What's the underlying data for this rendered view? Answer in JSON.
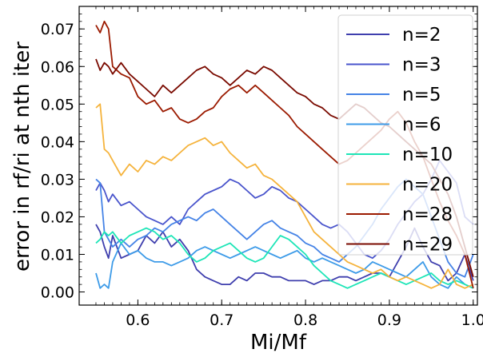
{
  "chart_data": {
    "type": "line",
    "title": "",
    "xlabel": "Mi/Mf",
    "ylabel": "error in rf/ri at nth iter",
    "xlim": [
      0.53,
      1.005
    ],
    "ylim": [
      -0.0035,
      0.076
    ],
    "xticks": [
      0.6,
      0.7,
      0.8,
      0.9,
      1.0
    ],
    "xtick_labels": [
      "0.6",
      "0.7",
      "0.8",
      "0.9",
      "1.0"
    ],
    "yticks": [
      0.0,
      0.01,
      0.02,
      0.03,
      0.04,
      0.05,
      0.06,
      0.07
    ],
    "ytick_labels": [
      "0.00",
      "0.01",
      "0.02",
      "0.03",
      "0.04",
      "0.05",
      "0.06",
      "0.07"
    ],
    "grid": false,
    "legend": "top-right",
    "series": [
      {
        "name": "n=2",
        "color": "#3f3fae",
        "x": [
          0.55,
          0.555,
          0.56,
          0.565,
          0.57,
          0.58,
          0.59,
          0.6,
          0.61,
          0.62,
          0.63,
          0.64,
          0.65,
          0.66,
          0.67,
          0.68,
          0.69,
          0.7,
          0.71,
          0.72,
          0.73,
          0.74,
          0.75,
          0.76,
          0.77,
          0.78,
          0.79,
          0.8,
          0.81,
          0.82,
          0.83,
          0.84,
          0.85,
          0.86,
          0.87,
          0.88,
          0.89,
          0.9,
          0.91,
          0.92,
          0.93,
          0.94,
          0.95,
          0.96,
          0.97,
          0.98,
          0.99,
          1.0
        ],
        "y": [
          0.018,
          0.016,
          0.012,
          0.009,
          0.015,
          0.009,
          0.01,
          0.011,
          0.015,
          0.013,
          0.016,
          0.012,
          0.014,
          0.011,
          0.006,
          0.004,
          0.003,
          0.002,
          0.002,
          0.004,
          0.003,
          0.005,
          0.005,
          0.004,
          0.004,
          0.003,
          0.003,
          0.003,
          0.002,
          0.003,
          0.003,
          0.004,
          0.004,
          0.003,
          0.004,
          0.005,
          0.005,
          0.004,
          0.008,
          0.012,
          0.017,
          0.012,
          0.008,
          0.007,
          0.003,
          0.005,
          0.01,
          0.003
        ]
      },
      {
        "name": "n=3",
        "color": "#4a55cc",
        "x": [
          0.55,
          0.555,
          0.56,
          0.565,
          0.57,
          0.58,
          0.59,
          0.6,
          0.61,
          0.62,
          0.63,
          0.64,
          0.65,
          0.66,
          0.67,
          0.68,
          0.69,
          0.7,
          0.71,
          0.72,
          0.73,
          0.74,
          0.75,
          0.76,
          0.77,
          0.78,
          0.79,
          0.8,
          0.81,
          0.82,
          0.83,
          0.84,
          0.85,
          0.86,
          0.87,
          0.88,
          0.89,
          0.9,
          0.91,
          0.92,
          0.93,
          0.94,
          0.95,
          0.96,
          0.97,
          0.98,
          0.99,
          1.0
        ],
        "y": [
          0.027,
          0.029,
          0.027,
          0.024,
          0.026,
          0.023,
          0.024,
          0.022,
          0.02,
          0.019,
          0.018,
          0.02,
          0.018,
          0.022,
          0.024,
          0.026,
          0.027,
          0.028,
          0.03,
          0.029,
          0.027,
          0.025,
          0.026,
          0.028,
          0.027,
          0.025,
          0.024,
          0.022,
          0.02,
          0.018,
          0.017,
          0.018,
          0.016,
          0.013,
          0.01,
          0.009,
          0.011,
          0.014,
          0.018,
          0.021,
          0.024,
          0.026,
          0.03,
          0.035,
          0.032,
          0.029,
          0.02,
          0.018
        ]
      },
      {
        "name": "n=5",
        "color": "#4583e6",
        "x": [
          0.55,
          0.555,
          0.56,
          0.565,
          0.57,
          0.58,
          0.59,
          0.6,
          0.61,
          0.62,
          0.63,
          0.64,
          0.65,
          0.66,
          0.67,
          0.68,
          0.69,
          0.7,
          0.71,
          0.72,
          0.73,
          0.74,
          0.75,
          0.76,
          0.77,
          0.78,
          0.79,
          0.8,
          0.81,
          0.82,
          0.83,
          0.84,
          0.85,
          0.86,
          0.87,
          0.88,
          0.89,
          0.9,
          0.91,
          0.92,
          0.93,
          0.94,
          0.95,
          0.96,
          0.97,
          0.98,
          0.99,
          1.0
        ],
        "y": [
          0.03,
          0.029,
          0.016,
          0.014,
          0.012,
          0.014,
          0.012,
          0.014,
          0.015,
          0.017,
          0.016,
          0.018,
          0.019,
          0.02,
          0.019,
          0.021,
          0.022,
          0.02,
          0.018,
          0.016,
          0.014,
          0.016,
          0.018,
          0.019,
          0.017,
          0.016,
          0.015,
          0.013,
          0.012,
          0.01,
          0.009,
          0.008,
          0.01,
          0.012,
          0.015,
          0.018,
          0.022,
          0.025,
          0.028,
          0.03,
          0.028,
          0.026,
          0.02,
          0.014,
          0.008,
          0.005,
          0.004,
          0.01
        ]
      },
      {
        "name": "n=6",
        "color": "#3d9be8",
        "x": [
          0.55,
          0.555,
          0.56,
          0.565,
          0.57,
          0.58,
          0.59,
          0.6,
          0.61,
          0.62,
          0.63,
          0.64,
          0.65,
          0.66,
          0.67,
          0.68,
          0.69,
          0.7,
          0.71,
          0.72,
          0.73,
          0.74,
          0.75,
          0.76,
          0.77,
          0.78,
          0.79,
          0.8,
          0.81,
          0.82,
          0.83,
          0.84,
          0.85,
          0.86,
          0.87,
          0.88,
          0.89,
          0.9,
          0.91,
          0.92,
          0.93,
          0.94,
          0.95,
          0.96,
          0.97,
          0.98,
          0.99,
          1.0
        ],
        "y": [
          0.005,
          0.001,
          0.002,
          0.001,
          0.008,
          0.013,
          0.01,
          0.011,
          0.009,
          0.008,
          0.008,
          0.007,
          0.008,
          0.009,
          0.011,
          0.012,
          0.011,
          0.01,
          0.009,
          0.01,
          0.011,
          0.012,
          0.011,
          0.01,
          0.009,
          0.01,
          0.011,
          0.009,
          0.008,
          0.009,
          0.008,
          0.007,
          0.006,
          0.005,
          0.006,
          0.008,
          0.007,
          0.006,
          0.005,
          0.004,
          0.006,
          0.008,
          0.004,
          0.002,
          0.001,
          0.004,
          0.002,
          0.001
        ]
      },
      {
        "name": "n=10",
        "color": "#1de5b7",
        "x": [
          0.55,
          0.555,
          0.56,
          0.565,
          0.57,
          0.58,
          0.59,
          0.6,
          0.61,
          0.62,
          0.63,
          0.64,
          0.65,
          0.66,
          0.67,
          0.68,
          0.69,
          0.7,
          0.71,
          0.72,
          0.73,
          0.74,
          0.75,
          0.76,
          0.77,
          0.78,
          0.79,
          0.8,
          0.81,
          0.82,
          0.83,
          0.84,
          0.85,
          0.86,
          0.87,
          0.88,
          0.89,
          0.9,
          0.91,
          0.92,
          0.93,
          0.94,
          0.95,
          0.96,
          0.97,
          0.98,
          0.99,
          1.0
        ],
        "y": [
          0.013,
          0.014,
          0.016,
          0.015,
          0.016,
          0.013,
          0.015,
          0.016,
          0.017,
          0.016,
          0.014,
          0.015,
          0.013,
          0.01,
          0.008,
          0.009,
          0.011,
          0.012,
          0.013,
          0.011,
          0.009,
          0.008,
          0.009,
          0.012,
          0.015,
          0.014,
          0.012,
          0.01,
          0.007,
          0.005,
          0.003,
          0.002,
          0.001,
          0.002,
          0.003,
          0.004,
          0.005,
          0.004,
          0.003,
          0.002,
          0.003,
          0.004,
          0.005,
          0.003,
          0.002,
          0.003,
          0.002,
          0.001
        ]
      },
      {
        "name": "n=20",
        "color": "#f5b33c",
        "x": [
          0.55,
          0.555,
          0.56,
          0.565,
          0.57,
          0.58,
          0.59,
          0.6,
          0.61,
          0.62,
          0.63,
          0.64,
          0.65,
          0.66,
          0.67,
          0.68,
          0.69,
          0.7,
          0.71,
          0.72,
          0.73,
          0.74,
          0.75,
          0.76,
          0.77,
          0.78,
          0.79,
          0.8,
          0.81,
          0.82,
          0.83,
          0.84,
          0.85,
          0.86,
          0.87,
          0.88,
          0.89,
          0.9,
          0.91,
          0.92,
          0.93,
          0.94,
          0.95,
          0.96,
          0.97,
          0.98,
          0.99,
          1.0
        ],
        "y": [
          0.049,
          0.05,
          0.038,
          0.037,
          0.035,
          0.031,
          0.034,
          0.032,
          0.035,
          0.034,
          0.036,
          0.035,
          0.037,
          0.039,
          0.04,
          0.041,
          0.039,
          0.04,
          0.037,
          0.035,
          0.033,
          0.034,
          0.031,
          0.03,
          0.028,
          0.026,
          0.024,
          0.02,
          0.016,
          0.014,
          0.012,
          0.01,
          0.008,
          0.007,
          0.006,
          0.005,
          0.006,
          0.004,
          0.003,
          0.004,
          0.003,
          0.002,
          0.001,
          0.002,
          0.006,
          0.002,
          0.001,
          0.002
        ]
      },
      {
        "name": "n=28",
        "color": "#9b1a00",
        "x": [
          0.55,
          0.555,
          0.56,
          0.565,
          0.57,
          0.58,
          0.59,
          0.6,
          0.61,
          0.62,
          0.63,
          0.64,
          0.65,
          0.66,
          0.67,
          0.68,
          0.69,
          0.7,
          0.71,
          0.72,
          0.73,
          0.74,
          0.75,
          0.76,
          0.77,
          0.78,
          0.79,
          0.8,
          0.81,
          0.82,
          0.83,
          0.84,
          0.85,
          0.86,
          0.87,
          0.88,
          0.89,
          0.9,
          0.91,
          0.92,
          0.93,
          0.94,
          0.95,
          0.96,
          0.97,
          0.98,
          0.99,
          1.0
        ],
        "y": [
          0.071,
          0.069,
          0.072,
          0.07,
          0.06,
          0.058,
          0.057,
          0.052,
          0.05,
          0.051,
          0.048,
          0.049,
          0.046,
          0.045,
          0.046,
          0.048,
          0.049,
          0.052,
          0.054,
          0.055,
          0.053,
          0.055,
          0.053,
          0.051,
          0.049,
          0.047,
          0.044,
          0.042,
          0.04,
          0.038,
          0.036,
          0.034,
          0.035,
          0.037,
          0.039,
          0.041,
          0.043,
          0.046,
          0.048,
          0.045,
          0.04,
          0.036,
          0.03,
          0.024,
          0.019,
          0.015,
          0.01,
          0.001
        ]
      },
      {
        "name": "n=29",
        "color": "#7a0a00",
        "x": [
          0.55,
          0.555,
          0.56,
          0.565,
          0.57,
          0.58,
          0.59,
          0.6,
          0.61,
          0.62,
          0.63,
          0.64,
          0.65,
          0.66,
          0.67,
          0.68,
          0.69,
          0.7,
          0.71,
          0.72,
          0.73,
          0.74,
          0.75,
          0.76,
          0.77,
          0.78,
          0.79,
          0.8,
          0.81,
          0.82,
          0.83,
          0.84,
          0.85,
          0.86,
          0.87,
          0.88,
          0.89,
          0.9,
          0.91,
          0.92,
          0.93,
          0.94,
          0.95,
          0.96,
          0.97,
          0.98,
          0.99,
          1.0
        ],
        "y": [
          0.062,
          0.059,
          0.061,
          0.06,
          0.058,
          0.061,
          0.058,
          0.056,
          0.054,
          0.052,
          0.055,
          0.053,
          0.055,
          0.057,
          0.059,
          0.06,
          0.058,
          0.057,
          0.055,
          0.057,
          0.059,
          0.058,
          0.06,
          0.059,
          0.057,
          0.055,
          0.053,
          0.052,
          0.05,
          0.049,
          0.047,
          0.046,
          0.048,
          0.05,
          0.049,
          0.047,
          0.045,
          0.044,
          0.042,
          0.04,
          0.038,
          0.036,
          0.034,
          0.03,
          0.026,
          0.02,
          0.012,
          0.004
        ]
      }
    ]
  }
}
